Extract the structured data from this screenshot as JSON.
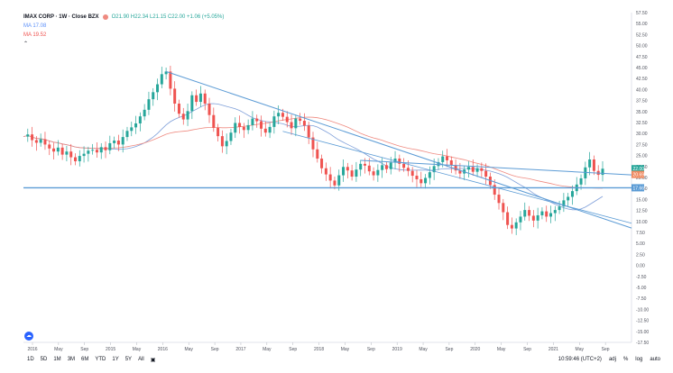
{
  "legend": {
    "symbol": "IMAX CORP · 1W · Close BZX",
    "ohlc": "O21.90 H22.34 L21.15 C22.00 +1.06 (+5.05%)",
    "ma1_label": "MA 17.08",
    "ma2_label": "MA 19.52"
  },
  "toolbar": {
    "ranges": [
      "1D",
      "5D",
      "1M",
      "3M",
      "6M",
      "YTD",
      "1Y",
      "5Y",
      "All"
    ]
  },
  "status": {
    "time": "10:59:46 (UTC+2)",
    "adj": "adj",
    "percent": "%",
    "log": "log",
    "auto": "auto"
  },
  "colors": {
    "up": "#26a69a",
    "down": "#ef5350",
    "trend": "#5b9bd5",
    "ma_blue": "#7f9fd9",
    "ma_red": "#ef8a80"
  },
  "chart_data": {
    "type": "candlestick",
    "y_ticks": [
      "57.50",
      "55.00",
      "52.50",
      "50.00",
      "47.50",
      "45.00",
      "42.50",
      "40.00",
      "37.50",
      "35.00",
      "32.50",
      "30.00",
      "27.50",
      "25.00",
      "22.50",
      "20.00",
      "17.50",
      "15.00",
      "12.50",
      "10.00",
      "7.50",
      "5.00",
      "2.50",
      "0.00",
      "-2.50",
      "-5.00",
      "-7.50",
      "-10.00",
      "-12.50",
      "-15.00",
      "-17.50"
    ],
    "x_ticks": [
      "2016",
      "May",
      "Sep",
      "2015",
      "May",
      "2016",
      "May",
      "Sep",
      "2017",
      "May",
      "Sep",
      "2018",
      "May",
      "Sep",
      "2019",
      "May",
      "Sep",
      "2020",
      "May",
      "Sep",
      "2021",
      "May",
      "Sep"
    ],
    "ylim": [
      -17.5,
      57.5
    ],
    "price_labels": [
      {
        "value": 22.0,
        "text": "22.00",
        "color": "#26a69a"
      },
      {
        "value": 20.69,
        "text": "20.69",
        "color": "#ef8a60"
      },
      {
        "value": 17.66,
        "text": "17.66",
        "color": "#5b9bd5"
      }
    ],
    "series": [
      {
        "name": "price",
        "values": [
          29.3,
          29.8,
          28.5,
          27.9,
          28.7,
          27.5,
          26.6,
          25.9,
          26.8,
          25.2,
          25.9,
          24.6,
          23.7,
          24.9,
          25.4,
          26.1,
          26.3,
          25.7,
          26.9,
          26.2,
          27.8,
          28.4,
          27.5,
          29.2,
          30.6,
          31.4,
          32.3,
          33.9,
          35.4,
          37.8,
          39.4,
          41.2,
          43.5,
          44.1,
          40.2,
          36.8,
          34.5,
          33.2,
          35.1,
          38.7,
          37.2,
          39.1,
          36.8,
          34.2,
          31.3,
          29.4,
          27.1,
          28.3,
          30.2,
          32.4,
          31.5,
          30.8,
          31.9,
          33.4,
          32.8,
          31.1,
          30.2,
          31.5,
          33.9,
          34.7,
          33.8,
          32.6,
          31.2,
          33.4,
          32.9,
          31.8,
          29.1,
          26.4,
          24.3,
          22.1,
          20.7,
          19.3,
          18.2,
          20.5,
          22.4,
          21.6,
          20.2,
          21.8,
          23.1,
          22.7,
          21.4,
          20.5,
          21.7,
          22.8,
          21.9,
          23.4,
          24.3,
          23.1,
          22.2,
          21.5,
          20.4,
          19.6,
          18.7,
          19.9,
          21.2,
          22.6,
          23.5,
          24.8,
          23.9,
          22.8,
          21.6,
          20.9,
          21.8,
          22.4,
          21.3,
          22.1,
          21.5,
          20.2,
          18.3,
          16.1,
          14.2,
          12.1,
          9.2,
          8.4,
          9.8,
          11.1,
          12.6,
          11.3,
          10.2,
          11.4,
          12.3,
          11.1,
          11.9,
          12.6,
          13.4,
          14.8,
          15.6,
          16.9,
          18.4,
          19.8,
          22.3,
          24.1,
          21.5,
          20.6,
          22.0
        ]
      }
    ],
    "annotations": [
      "downtrend line",
      "upper horizontal resistance",
      "horizontal support 17.66",
      "lower descending trendline"
    ]
  }
}
